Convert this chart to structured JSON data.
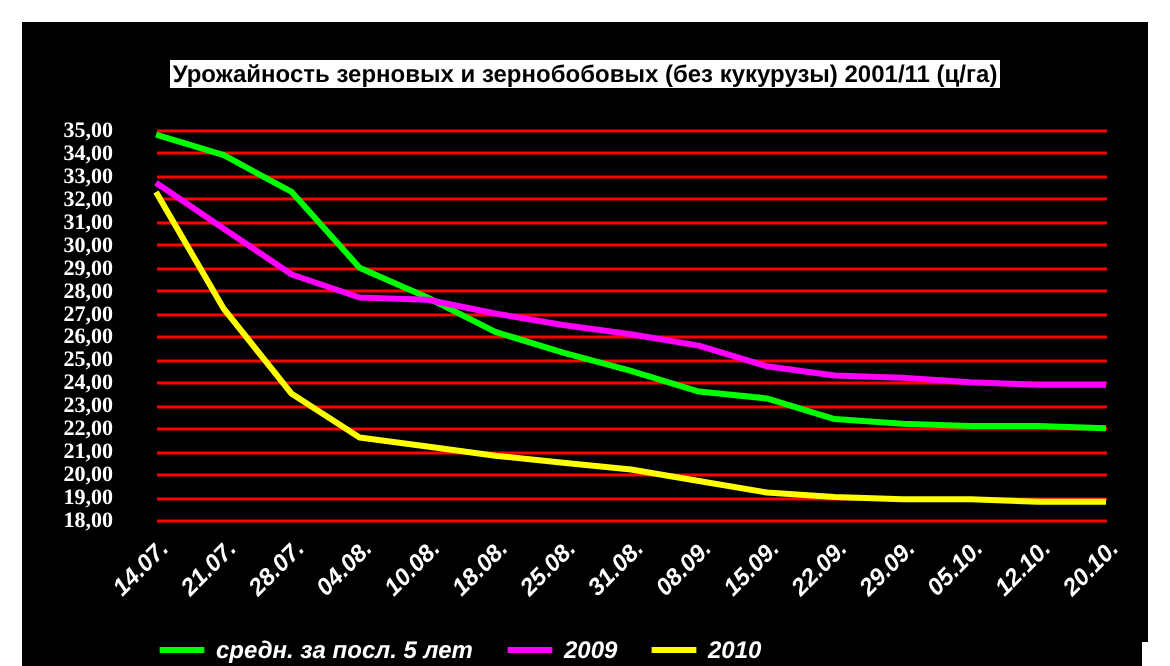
{
  "chart_data": {
    "type": "line",
    "title": "Урожайность зерновых и зернобобовых (без кукурузы) 2001/11 (ц/га)",
    "categories": [
      "14.07.",
      "21.07.",
      "28.07.",
      "04.08.",
      "10.08.",
      "18.08.",
      "25.08.",
      "31.08.",
      "08.09.",
      "15.09.",
      "22.09.",
      "29.09.",
      "05.10.",
      "12.10.",
      "20.10."
    ],
    "series": [
      {
        "name": "средн. за посл. 5 лет",
        "color": "#00ff00",
        "values": [
          34.8,
          33.9,
          32.3,
          29.0,
          27.7,
          26.2,
          25.3,
          24.5,
          23.6,
          23.3,
          22.4,
          22.2,
          22.1,
          22.1,
          22.0
        ]
      },
      {
        "name": "2009",
        "color": "#ff00ff",
        "values": [
          32.7,
          30.7,
          28.7,
          27.7,
          27.6,
          27.0,
          26.5,
          26.1,
          25.6,
          24.7,
          24.3,
          24.2,
          24.0,
          23.9,
          23.9
        ]
      },
      {
        "name": "2010",
        "color": "#ffff00",
        "values": [
          32.3,
          27.2,
          23.5,
          21.6,
          21.2,
          20.8,
          20.5,
          20.2,
          19.7,
          19.2,
          19.0,
          18.9,
          18.9,
          18.8,
          18.8
        ]
      }
    ],
    "ylim": [
      18,
      35
    ],
    "yticks": [
      {
        "value": 18,
        "label": "18,00"
      },
      {
        "value": 19,
        "label": "19,00"
      },
      {
        "value": 20,
        "label": "20,00"
      },
      {
        "value": 21,
        "label": "21,00"
      },
      {
        "value": 22,
        "label": "22,00"
      },
      {
        "value": 23,
        "label": "23,00"
      },
      {
        "value": 24,
        "label": "24,00"
      },
      {
        "value": 25,
        "label": "25,00"
      },
      {
        "value": 26,
        "label": "26,00"
      },
      {
        "value": 27,
        "label": "27,00"
      },
      {
        "value": 28,
        "label": "28,00"
      },
      {
        "value": 29,
        "label": "29,00"
      },
      {
        "value": 30,
        "label": "30,00"
      },
      {
        "value": 31,
        "label": "31,00"
      },
      {
        "value": 32,
        "label": "32,00"
      },
      {
        "value": 33,
        "label": "33,00"
      },
      {
        "value": 34,
        "label": "34,00"
      },
      {
        "value": 35,
        "label": "35,00"
      }
    ],
    "grid": "y",
    "legend": "bottom",
    "marker": "none",
    "line_style": "solid"
  }
}
